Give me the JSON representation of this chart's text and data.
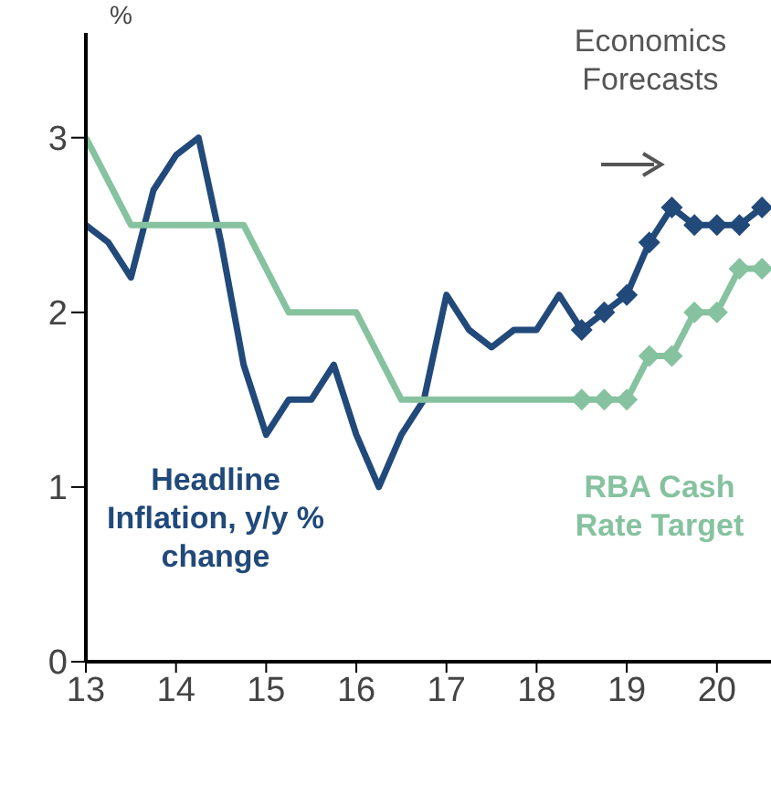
{
  "chart_data": {
    "type": "line",
    "ylabel": "%",
    "annotations": [
      "Economics Forecasts"
    ],
    "xlim": [
      13,
      20.6
    ],
    "xticks": [
      13,
      14,
      15,
      16,
      17,
      18,
      19,
      20
    ],
    "ylim": [
      0,
      3.6
    ],
    "yticks": [
      0,
      1,
      2,
      3
    ],
    "grid": false,
    "legend": false,
    "series": [
      {
        "name": "Headline Inflation, y/y % change",
        "color": "#21497a",
        "x": [
          13,
          13.25,
          13.5,
          13.75,
          14,
          14.25,
          14.5,
          14.75,
          15,
          15.25,
          15.5,
          15.75,
          16,
          16.25,
          16.5,
          16.75,
          17,
          17.25,
          17.5,
          17.75,
          18,
          18.25,
          18.5
        ],
        "values": [
          2.5,
          2.4,
          2.2,
          2.7,
          2.9,
          3.0,
          2.4,
          1.7,
          1.3,
          1.5,
          1.5,
          1.7,
          1.3,
          1.0,
          1.3,
          1.5,
          2.1,
          1.9,
          1.8,
          1.9,
          1.9,
          2.1,
          1.9
        ]
      },
      {
        "color": "#21497a",
        "marker": "diamond",
        "x": [
          18.5,
          18.75,
          19,
          19.25,
          19.5,
          19.75,
          20,
          20.25,
          20.5
        ],
        "values": [
          1.9,
          2.0,
          2.1,
          2.4,
          2.6,
          2.5,
          2.5,
          2.5,
          2.6
        ]
      },
      {
        "name": "RBA Cash Rate Target",
        "color": "#86c29f",
        "x": [
          13,
          13.5,
          14.75,
          15.25,
          16,
          16.5,
          18.5
        ],
        "values": [
          3.0,
          2.5,
          2.5,
          2.0,
          2.0,
          1.5,
          1.5
        ]
      },
      {
        "color": "#86c29f",
        "marker": "diamond",
        "x": [
          18.5,
          18.75,
          19,
          19.25,
          19.5,
          19.75,
          20,
          20.25,
          20.5
        ],
        "values": [
          1.5,
          1.5,
          1.5,
          1.75,
          1.75,
          2.0,
          2.0,
          2.25,
          2.25
        ]
      }
    ]
  }
}
